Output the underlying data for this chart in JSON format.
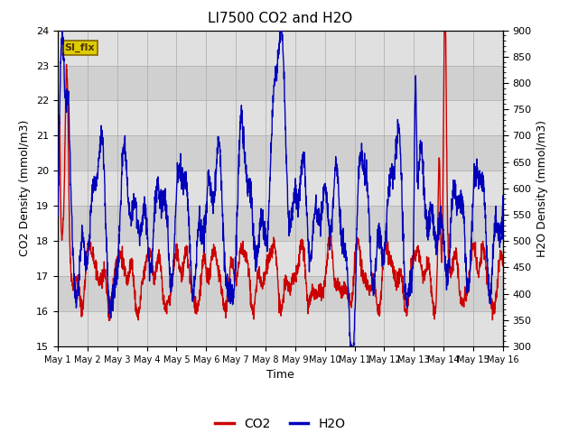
{
  "title": "LI7500 CO2 and H2O",
  "xlabel": "Time",
  "ylabel_left": "CO2 Density (mmol/m3)",
  "ylabel_right": "H2O Density (mmol/m3)",
  "co2_color": "#cc0000",
  "h2o_color": "#0000bb",
  "ylim_left": [
    15.0,
    24.0
  ],
  "ylim_right": [
    300,
    900
  ],
  "yticks_left": [
    15.0,
    16.0,
    17.0,
    18.0,
    19.0,
    20.0,
    21.0,
    22.0,
    23.0,
    24.0
  ],
  "yticks_right": [
    300,
    350,
    400,
    450,
    500,
    550,
    600,
    650,
    700,
    750,
    800,
    850,
    900
  ],
  "x_tick_labels": [
    "May 1",
    "May 2",
    "May 3",
    "May 4",
    "May 5",
    "May 6",
    "May 7",
    "May 8",
    "May 9",
    "May 10",
    "May 11",
    "May 12",
    "May 13",
    "May 14",
    "May 15",
    "May 16"
  ],
  "n_days": 15,
  "annotation_text": "SI_flx",
  "annotation_fgcolor": "#553300",
  "annotation_bg": "#ddcc00",
  "annotation_edgecolor": "#886600",
  "background_stripe1": "#e8e8e8",
  "background_stripe2": "#d8d8d8",
  "grid_color": "#cccccc",
  "line_width": 1.0,
  "title_fontsize": 11,
  "axis_fontsize": 9,
  "tick_fontsize": 8,
  "legend_fontsize": 10
}
